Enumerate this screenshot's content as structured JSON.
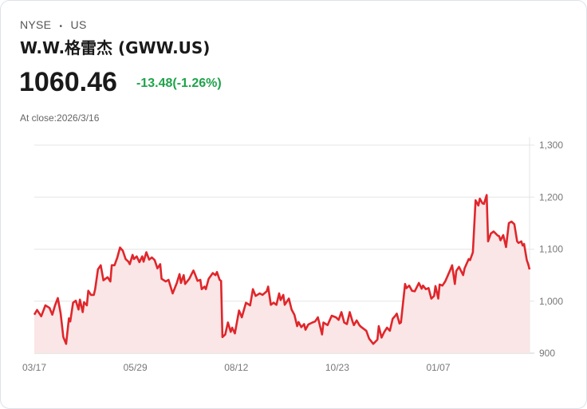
{
  "header": {
    "exchange": "NYSE",
    "separator": "•",
    "market": "US",
    "title": "W.W.格雷杰 (GWW.US)",
    "price": "1060.46",
    "change": "-13.48(-1.26%)",
    "close_label": "At close:2026/3/16"
  },
  "colors": {
    "line": "#e0262b",
    "fill": "#fae6e6",
    "change": "#1ea34a"
  },
  "chart_data": {
    "type": "area",
    "title": "",
    "xlabel": "",
    "ylabel": "",
    "ylim": [
      900,
      1300
    ],
    "xlim": [
      0,
      358
    ],
    "grid": true,
    "y_ticks": [
      1300,
      1200,
      1100,
      1000,
      900
    ],
    "y_tick_labels": [
      "1,300",
      "1,200",
      "1,100",
      "1,000",
      "900"
    ],
    "x_ticks": [
      0,
      73,
      146,
      219,
      292
    ],
    "x_tick_labels": [
      "03/17",
      "05/29",
      "08/12",
      "10/23",
      "01/07"
    ],
    "x": [
      0,
      2,
      5,
      8,
      11,
      13,
      15,
      17,
      19,
      21,
      23,
      25,
      26,
      28,
      30,
      32,
      33,
      35,
      36,
      38,
      39,
      41,
      43,
      44,
      46,
      48,
      50,
      53,
      55,
      56,
      58,
      60,
      62,
      64,
      66,
      68,
      69,
      71,
      72,
      74,
      76,
      78,
      79,
      81,
      83,
      85,
      87,
      89,
      91,
      92,
      95,
      97,
      100,
      103,
      105,
      106,
      108,
      109,
      112,
      115,
      116,
      118,
      120,
      121,
      123,
      124,
      126,
      129,
      131,
      132,
      134,
      135,
      136,
      138,
      140,
      142,
      143,
      145,
      148,
      150,
      153,
      156,
      158,
      160,
      163,
      165,
      168,
      169,
      171,
      173,
      175,
      177,
      178,
      180,
      181,
      184,
      186,
      188,
      190,
      191,
      193,
      195,
      196,
      198,
      201,
      203,
      205,
      208,
      209,
      212,
      215,
      218,
      220,
      222,
      224,
      226,
      228,
      230,
      231,
      233,
      235,
      236,
      238,
      240,
      242,
      245,
      248,
      249,
      251,
      253,
      255,
      257,
      259,
      261,
      262,
      264,
      265,
      268,
      269,
      271,
      273,
      275,
      278,
      280,
      281,
      283,
      285,
      287,
      289,
      290,
      292,
      293,
      295,
      297,
      300,
      302,
      304,
      305,
      307,
      310,
      311,
      314,
      315,
      317,
      319,
      321,
      322,
      324,
      325,
      327,
      328,
      330,
      332,
      335,
      336,
      337,
      339,
      341,
      343,
      345,
      347,
      349,
      350,
      352,
      353,
      354,
      356,
      357,
      358
    ],
    "y": [
      974,
      983,
      971,
      992,
      987,
      974,
      992,
      1006,
      977,
      931,
      918,
      967,
      961,
      997,
      1001,
      984,
      1003,
      979,
      998,
      992,
      1020,
      1012,
      1012,
      1023,
      1061,
      1069,
      1040,
      1046,
      1038,
      1069,
      1069,
      1084,
      1103,
      1097,
      1081,
      1076,
      1071,
      1089,
      1081,
      1086,
      1075,
      1086,
      1076,
      1094,
      1080,
      1084,
      1079,
      1063,
      1071,
      1043,
      1038,
      1041,
      1015,
      1035,
      1052,
      1035,
      1050,
      1033,
      1043,
      1059,
      1053,
      1039,
      1041,
      1023,
      1028,
      1023,
      1043,
      1054,
      1050,
      1056,
      1041,
      1039,
      931,
      936,
      959,
      941,
      949,
      938,
      982,
      969,
      997,
      992,
      1023,
      1010,
      1015,
      1012,
      1019,
      1028,
      993,
      997,
      993,
      1015,
      1002,
      1012,
      993,
      1005,
      984,
      974,
      952,
      960,
      950,
      956,
      945,
      955,
      959,
      961,
      969,
      936,
      959,
      954,
      972,
      969,
      964,
      979,
      959,
      956,
      979,
      961,
      954,
      963,
      954,
      951,
      947,
      943,
      928,
      918,
      926,
      952,
      930,
      941,
      949,
      943,
      966,
      972,
      976,
      957,
      959,
      1033,
      1025,
      1030,
      1020,
      1019,
      1035,
      1024,
      1030,
      1023,
      1025,
      1005,
      1010,
      1029,
      1005,
      1032,
      1030,
      1038,
      1056,
      1069,
      1033,
      1058,
      1066,
      1050,
      1063,
      1081,
      1079,
      1094,
      1194,
      1184,
      1197,
      1188,
      1187,
      1204,
      1115,
      1130,
      1134,
      1126,
      1125,
      1117,
      1127,
      1104,
      1150,
      1153,
      1148,
      1115,
      1112,
      1115,
      1107,
      1110,
      1079,
      1071,
      1061
    ]
  }
}
